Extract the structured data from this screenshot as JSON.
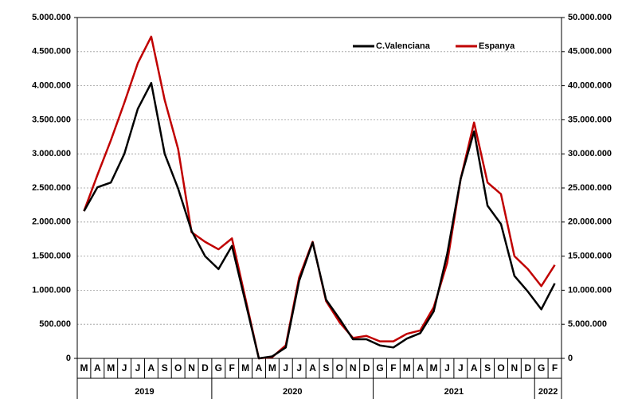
{
  "chart_data": {
    "type": "line",
    "categories": [
      "M",
      "A",
      "M",
      "J",
      "J",
      "A",
      "S",
      "O",
      "N",
      "D",
      "G",
      "F",
      "M",
      "A",
      "M",
      "J",
      "J",
      "A",
      "S",
      "O",
      "N",
      "D",
      "G",
      "F",
      "M",
      "A",
      "M",
      "J",
      "J",
      "A",
      "S",
      "O",
      "N",
      "D",
      "G",
      "F"
    ],
    "groups": [
      "2019",
      "2020",
      "2021",
      "2022"
    ],
    "series": [
      {
        "name": "C.Valenciana",
        "color": "#000000",
        "axis": "y",
        "values": [
          2160000,
          2510000,
          2580000,
          3000000,
          3660000,
          4040000,
          3000000,
          2490000,
          1870000,
          1500000,
          1310000,
          1650000,
          830000,
          0,
          30000,
          160000,
          1140000,
          1700000,
          860000,
          580000,
          280000,
          280000,
          190000,
          160000,
          290000,
          370000,
          690000,
          1530000,
          2630000,
          3330000,
          2240000,
          1970000,
          1210000,
          980000,
          720000,
          1100000
        ]
      },
      {
        "name": "Espanya",
        "color": "#c00000",
        "axis": "y2",
        "values": [
          21600000,
          26900000,
          32000000,
          37500000,
          43300000,
          47200000,
          37900000,
          30700000,
          18500000,
          17100000,
          16000000,
          17600000,
          8800000,
          0,
          200000,
          1900000,
          11900000,
          17100000,
          8400000,
          5300000,
          3000000,
          3300000,
          2500000,
          2500000,
          3600000,
          4100000,
          7500000,
          14000000,
          26300000,
          34600000,
          25800000,
          24100000,
          15000000,
          13100000,
          10600000,
          13700000
        ]
      }
    ],
    "ylim": [
      0,
      5000000
    ],
    "yticks": [
      0,
      {
        "value": 500000,
        "label": "500.000"
      },
      {
        "value": 1000000,
        "label": "1.000.000"
      },
      {
        "value": 1500000,
        "label": "1.500.000"
      },
      {
        "value": 2000000,
        "label": "2.000.000"
      },
      {
        "value": 2500000,
        "label": "2.500.000"
      },
      {
        "value": 3000000,
        "label": "3.000.000"
      },
      {
        "value": 3500000,
        "label": "3.500.000"
      },
      {
        "value": 4000000,
        "label": "4.000.000"
      },
      {
        "value": 4500000,
        "label": "4.500.000"
      },
      {
        "value": 5000000,
        "label": "5.000.000"
      }
    ],
    "y2lim": [
      0,
      50000000
    ],
    "y2ticks": [
      0,
      {
        "value": 5000000,
        "label": "5.000.000"
      },
      {
        "value": 10000000,
        "label": "10.000.000"
      },
      {
        "value": 15000000,
        "label": "15.000.000"
      },
      {
        "value": 20000000,
        "label": "20.000.000"
      },
      {
        "value": 25000000,
        "label": "25.000.000"
      },
      {
        "value": 30000000,
        "label": "30.000.000"
      },
      {
        "value": 35000000,
        "label": "35.000.000"
      },
      {
        "value": 40000000,
        "label": "40.000.000"
      },
      {
        "value": 45000000,
        "label": "45.000.000"
      },
      {
        "value": 50000000,
        "label": "50.000.000"
      }
    ],
    "grid": true,
    "legend": "upper right"
  }
}
